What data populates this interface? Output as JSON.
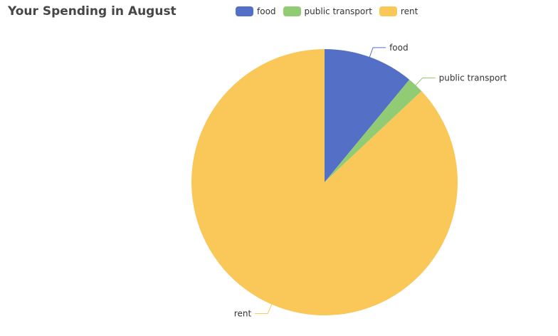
{
  "chart_data": {
    "type": "pie",
    "title": "Your Spending in August",
    "legend_position": "top",
    "slices": [
      {
        "name": "food",
        "value": 11,
        "color": "#5470c6"
      },
      {
        "name": "public transport",
        "value": 2,
        "color": "#91cc75"
      },
      {
        "name": "rent",
        "value": 87,
        "color": "#fac858"
      }
    ]
  }
}
